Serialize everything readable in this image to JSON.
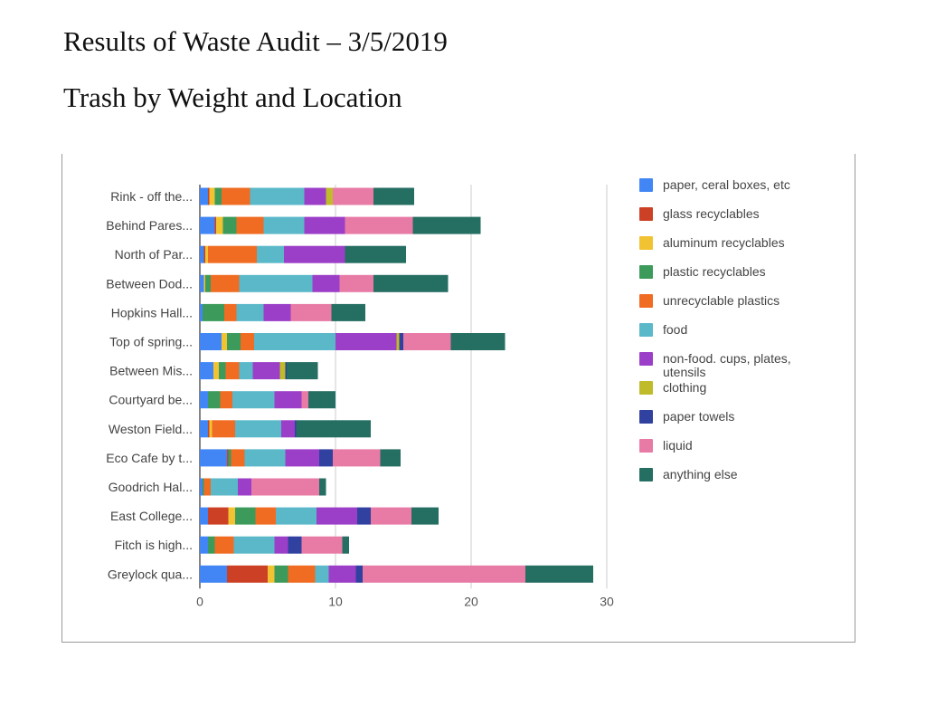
{
  "document": {
    "title": "Results of Waste Audit – 3/5/2019",
    "subtitle": "Trash by Weight and Location"
  },
  "chart_data": {
    "type": "bar",
    "orientation": "horizontal",
    "stacked": true,
    "title": "",
    "xlabel": "",
    "ylabel": "",
    "xlim": [
      0,
      30
    ],
    "x_ticks": [
      0,
      10,
      20,
      30
    ],
    "grid": true,
    "legend_position": "right",
    "categories": [
      "Rink - off the...",
      "Behind Pares...",
      "North of Par...",
      "Between Dod...",
      "Hopkins Hall...",
      "Top of spring...",
      "Between Mis...",
      "Courtyard be...",
      "Weston Field...",
      "Eco Cafe by t...",
      "Goodrich Hal...",
      "East College...",
      "Fitch is high...",
      "Greylock qua..."
    ],
    "series": [
      {
        "name": "paper, ceral boxes, etc",
        "color": "#4285f4",
        "values": [
          0.6,
          1.1,
          0.3,
          0.3,
          0.2,
          1.6,
          1.0,
          0.6,
          0.6,
          2.0,
          0.2,
          0.6,
          0.6,
          2.0
        ]
      },
      {
        "name": "glass recyclables",
        "color": "#cc4125",
        "values": [
          0.1,
          0.1,
          0.1,
          0.0,
          0.0,
          0.0,
          0.0,
          0.0,
          0.1,
          0.1,
          0.0,
          1.5,
          0.0,
          3.0
        ]
      },
      {
        "name": "aluminum recyclables",
        "color": "#f1c232",
        "values": [
          0.4,
          0.5,
          0.2,
          0.1,
          0.0,
          0.4,
          0.4,
          0.0,
          0.2,
          0.0,
          0.0,
          0.5,
          0.0,
          0.5
        ]
      },
      {
        "name": "plastic recyclables",
        "color": "#3c9b5b",
        "values": [
          0.5,
          1.0,
          0.0,
          0.4,
          1.6,
          1.0,
          0.5,
          0.9,
          0.0,
          0.2,
          0.1,
          1.5,
          0.5,
          1.0
        ]
      },
      {
        "name": "unrecyclable plastics",
        "color": "#ef6c22",
        "values": [
          2.1,
          2.0,
          3.6,
          2.1,
          0.9,
          1.0,
          1.0,
          0.9,
          1.7,
          1.0,
          0.5,
          1.5,
          1.4,
          2.0
        ]
      },
      {
        "name": "food",
        "color": "#5ab8c9",
        "values": [
          4.0,
          3.0,
          2.0,
          5.4,
          2.0,
          6.0,
          1.0,
          3.1,
          3.4,
          3.0,
          2.0,
          3.0,
          3.0,
          1.0
        ]
      },
      {
        "name": "non-food.  cups, plates, utensils",
        "color": "#9c3fc8",
        "values": [
          1.6,
          3.0,
          4.5,
          2.0,
          2.0,
          4.5,
          2.0,
          2.0,
          1.0,
          2.5,
          1.0,
          3.0,
          1.0,
          2.0
        ]
      },
      {
        "name": "clothing",
        "color": "#bfbb2a",
        "values": [
          0.5,
          0.0,
          0.0,
          0.0,
          0.0,
          0.2,
          0.4,
          0.0,
          0.0,
          0.0,
          0.0,
          0.0,
          0.0,
          0.0
        ]
      },
      {
        "name": "paper towels",
        "color": "#3041a0",
        "values": [
          0.0,
          0.0,
          0.0,
          0.0,
          0.0,
          0.3,
          0.1,
          0.0,
          0.1,
          1.0,
          0.0,
          1.0,
          1.0,
          0.5
        ]
      },
      {
        "name": "liquid",
        "color": "#e87ba6",
        "values": [
          3.0,
          5.0,
          0.0,
          2.5,
          3.0,
          3.5,
          0.0,
          0.5,
          0.0,
          3.5,
          5.0,
          3.0,
          3.0,
          12.0
        ]
      },
      {
        "name": "anything else",
        "color": "#256e62",
        "values": [
          3.0,
          5.0,
          4.5,
          5.5,
          2.5,
          4.0,
          2.3,
          2.0,
          5.5,
          1.5,
          0.5,
          2.0,
          0.5,
          5.0
        ]
      }
    ]
  }
}
